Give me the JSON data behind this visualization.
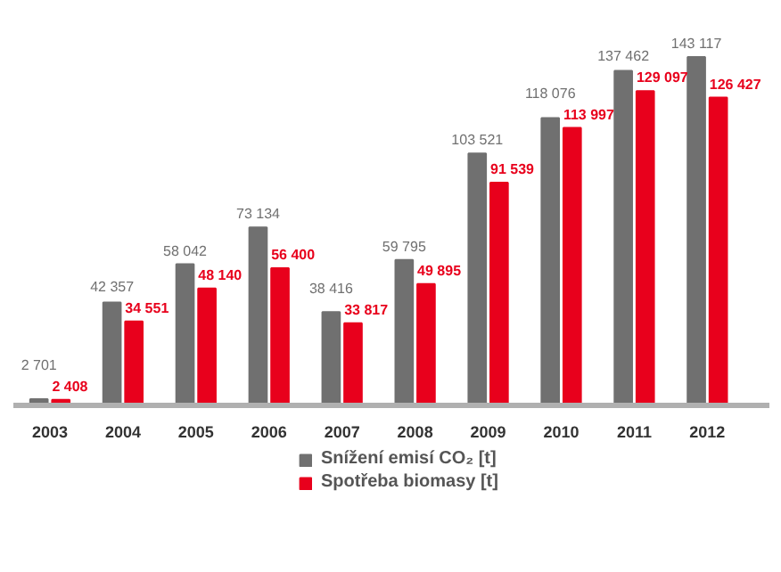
{
  "chart_data": {
    "type": "bar",
    "categories": [
      "2003",
      "2004",
      "2005",
      "2006",
      "2007",
      "2008",
      "2009",
      "2010",
      "2011",
      "2012"
    ],
    "series": [
      {
        "name": "Snížení emisí CO₂ [t]",
        "color": "#707070",
        "values": [
          2701,
          42357,
          58042,
          73134,
          38416,
          59795,
          103521,
          118076,
          137462,
          143117
        ],
        "value_labels": [
          "2 701",
          "42 357",
          "58 042",
          "73 134",
          "38 416",
          "59 795",
          "103 521",
          "118 076",
          "137 462",
          "143 117"
        ]
      },
      {
        "name": "Spotřeba biomasy [t]",
        "color": "#e8001c",
        "values": [
          2408,
          34551,
          48140,
          56400,
          33817,
          49895,
          91539,
          113997,
          129097,
          126427
        ],
        "value_labels": [
          "2 408",
          "34 551",
          "48 140",
          "56 400",
          "33 817",
          "49 895",
          "91 539",
          "113 997",
          "129 097",
          "126 427"
        ]
      }
    ],
    "legend": "bottom",
    "grid": false
  }
}
